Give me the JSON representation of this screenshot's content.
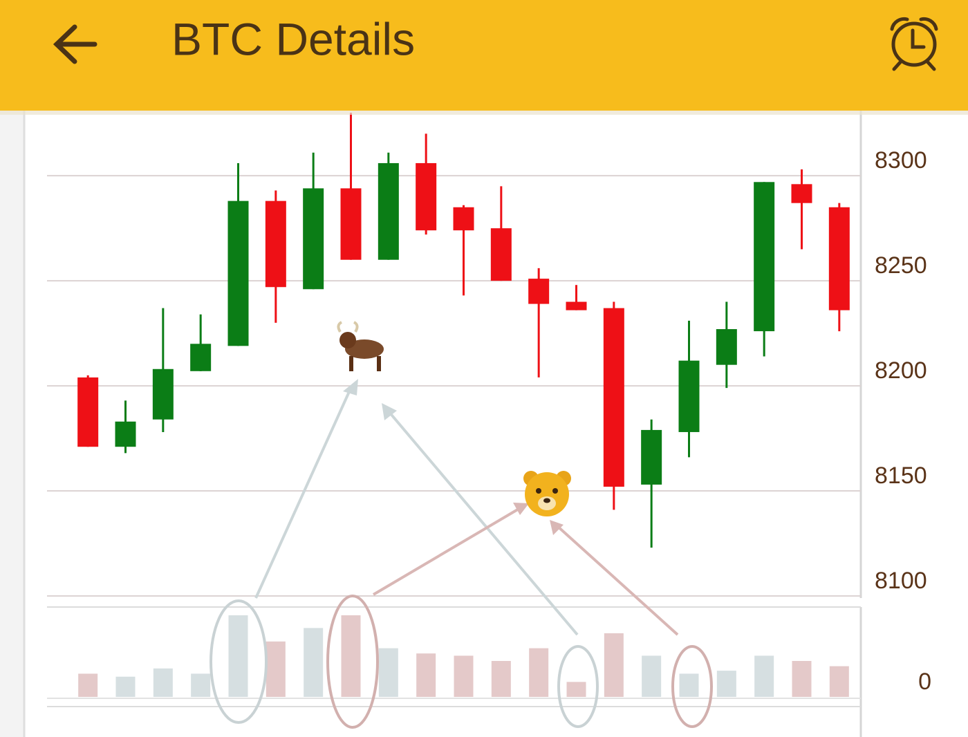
{
  "header": {
    "title": "BTC Details"
  },
  "chart_data": {
    "type": "candlestick",
    "open": [
      8204,
      8171,
      8184,
      8207,
      8219,
      8288,
      8246,
      8294,
      8260,
      8306,
      8285,
      8275,
      8251,
      8240,
      8237,
      8153,
      8178,
      8210,
      8226,
      8296,
      8285
    ],
    "high": [
      8205,
      8193,
      8237,
      8234,
      8306,
      8293,
      8311,
      8330,
      8311,
      8320,
      8286,
      8295,
      8256,
      8248,
      8240,
      8184,
      8231,
      8240,
      8297,
      8303,
      8287
    ],
    "low": [
      8171,
      8168,
      8178,
      8207,
      8219,
      8230,
      8246,
      8260,
      8260,
      8272,
      8243,
      8250,
      8204,
      8236,
      8141,
      8123,
      8166,
      8199,
      8214,
      8265,
      8226
    ],
    "close": [
      8171,
      8183,
      8208,
      8220,
      8288,
      8247,
      8294,
      8260,
      8306,
      8274,
      8274,
      8250,
      8239,
      8236,
      8152,
      8179,
      8212,
      8227,
      8297,
      8287,
      8236
    ],
    "up_color": "#0b7d16",
    "down_color": "#ee1016",
    "ylim": [
      8100,
      8330
    ],
    "yticks": [
      8100,
      8150,
      8200,
      8250,
      8300
    ],
    "grid": true,
    "volume": {
      "values": [
        31,
        27,
        38,
        31,
        109,
        74,
        92,
        109,
        65,
        58,
        55,
        48,
        65,
        20,
        85,
        55,
        31,
        35,
        55,
        48,
        41
      ],
      "up_color": "#d6dfe1",
      "down_color": "#e4c9c9",
      "ylim": [
        0,
        120
      ],
      "yticks": [
        0
      ]
    }
  }
}
